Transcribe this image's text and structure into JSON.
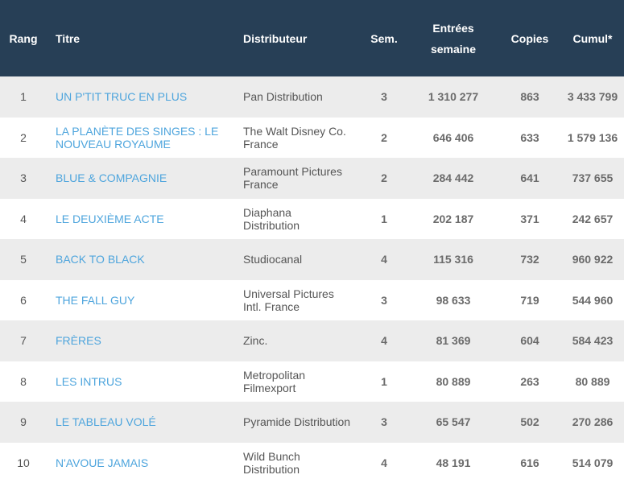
{
  "headers": {
    "rang": "Rang",
    "titre": "Titre",
    "distributeur": "Distributeur",
    "sem": "Sem.",
    "entrees_line1": "Entrées",
    "entrees_line2": "semaine",
    "copies": "Copies",
    "cumul": "Cumul*"
  },
  "rows": [
    {
      "rang": "1",
      "titre": "UN P'TIT TRUC EN PLUS",
      "dist1": "Pan Distribution",
      "dist2": "",
      "sem": "3",
      "entrees": "1 310 277",
      "copies": "863",
      "cumul": "3 433 799"
    },
    {
      "rang": "2",
      "titre": "LA PLANÈTE DES SINGES : LE NOUVEAU ROYAUME",
      "dist1": "The Walt Disney Co.",
      "dist2": "France",
      "sem": "2",
      "entrees": "646 406",
      "copies": "633",
      "cumul": "1 579 136"
    },
    {
      "rang": "3",
      "titre": "BLUE & COMPAGNIE",
      "dist1": "Paramount Pictures",
      "dist2": "France",
      "sem": "2",
      "entrees": "284 442",
      "copies": "641",
      "cumul": "737 655"
    },
    {
      "rang": "4",
      "titre": "LE DEUXIÈME ACTE",
      "dist1": "Diaphana",
      "dist2": "Distribution",
      "sem": "1",
      "entrees": "202 187",
      "copies": "371",
      "cumul": "242 657"
    },
    {
      "rang": "5",
      "titre": "BACK TO BLACK",
      "dist1": "Studiocanal",
      "dist2": "",
      "sem": "4",
      "entrees": "115 316",
      "copies": "732",
      "cumul": "960 922"
    },
    {
      "rang": "6",
      "titre": "THE FALL GUY",
      "dist1": "Universal Pictures",
      "dist2": "Intl. France",
      "sem": "3",
      "entrees": "98 633",
      "copies": "719",
      "cumul": "544 960"
    },
    {
      "rang": "7",
      "titre": "FRÈRES",
      "dist1": "Zinc.",
      "dist2": "",
      "sem": "4",
      "entrees": "81 369",
      "copies": "604",
      "cumul": "584 423"
    },
    {
      "rang": "8",
      "titre": "LES INTRUS",
      "dist1": "Metropolitan",
      "dist2": "Filmexport",
      "sem": "1",
      "entrees": "80 889",
      "copies": "263",
      "cumul": "80 889"
    },
    {
      "rang": "9",
      "titre": "LE TABLEAU VOLÉ",
      "dist1": "Pyramide Distribution",
      "dist2": "",
      "sem": "3",
      "entrees": "65 547",
      "copies": "502",
      "cumul": "270 286"
    },
    {
      "rang": "10",
      "titre": "N'AVOUE JAMAIS",
      "dist1": "Wild Bunch",
      "dist2": "Distribution",
      "sem": "4",
      "entrees": "48 191",
      "copies": "616",
      "cumul": "514 079"
    }
  ]
}
